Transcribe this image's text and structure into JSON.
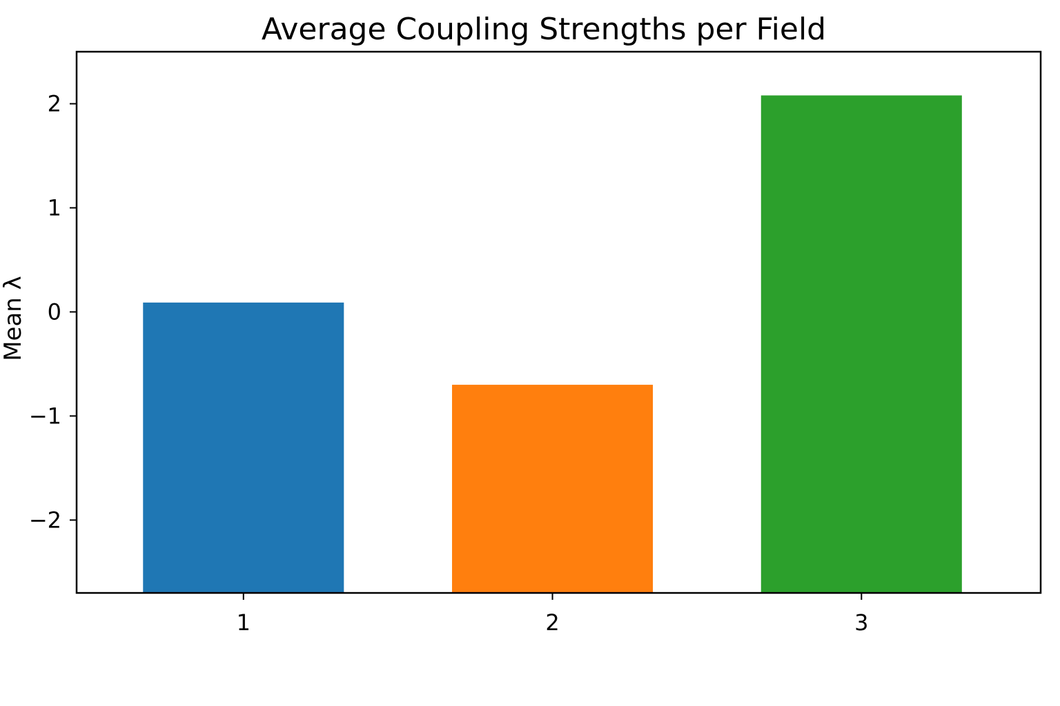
{
  "chart_data": {
    "type": "bar",
    "title": "Average Coupling Strengths per Field",
    "xlabel": "",
    "ylabel": "Mean λ",
    "categories": [
      "1",
      "2",
      "3"
    ],
    "values": [
      0.09,
      -0.7,
      2.08
    ],
    "colors": [
      "#1f77b4",
      "#ff7f0e",
      "#2ca02c"
    ],
    "ylim": [
      -2.7,
      2.5
    ],
    "yticks": [
      -2,
      -1,
      0,
      1,
      2
    ],
    "ytick_labels": [
      "−2",
      "−1",
      "0",
      "1",
      "2"
    ],
    "grid": false,
    "legend": "none"
  }
}
